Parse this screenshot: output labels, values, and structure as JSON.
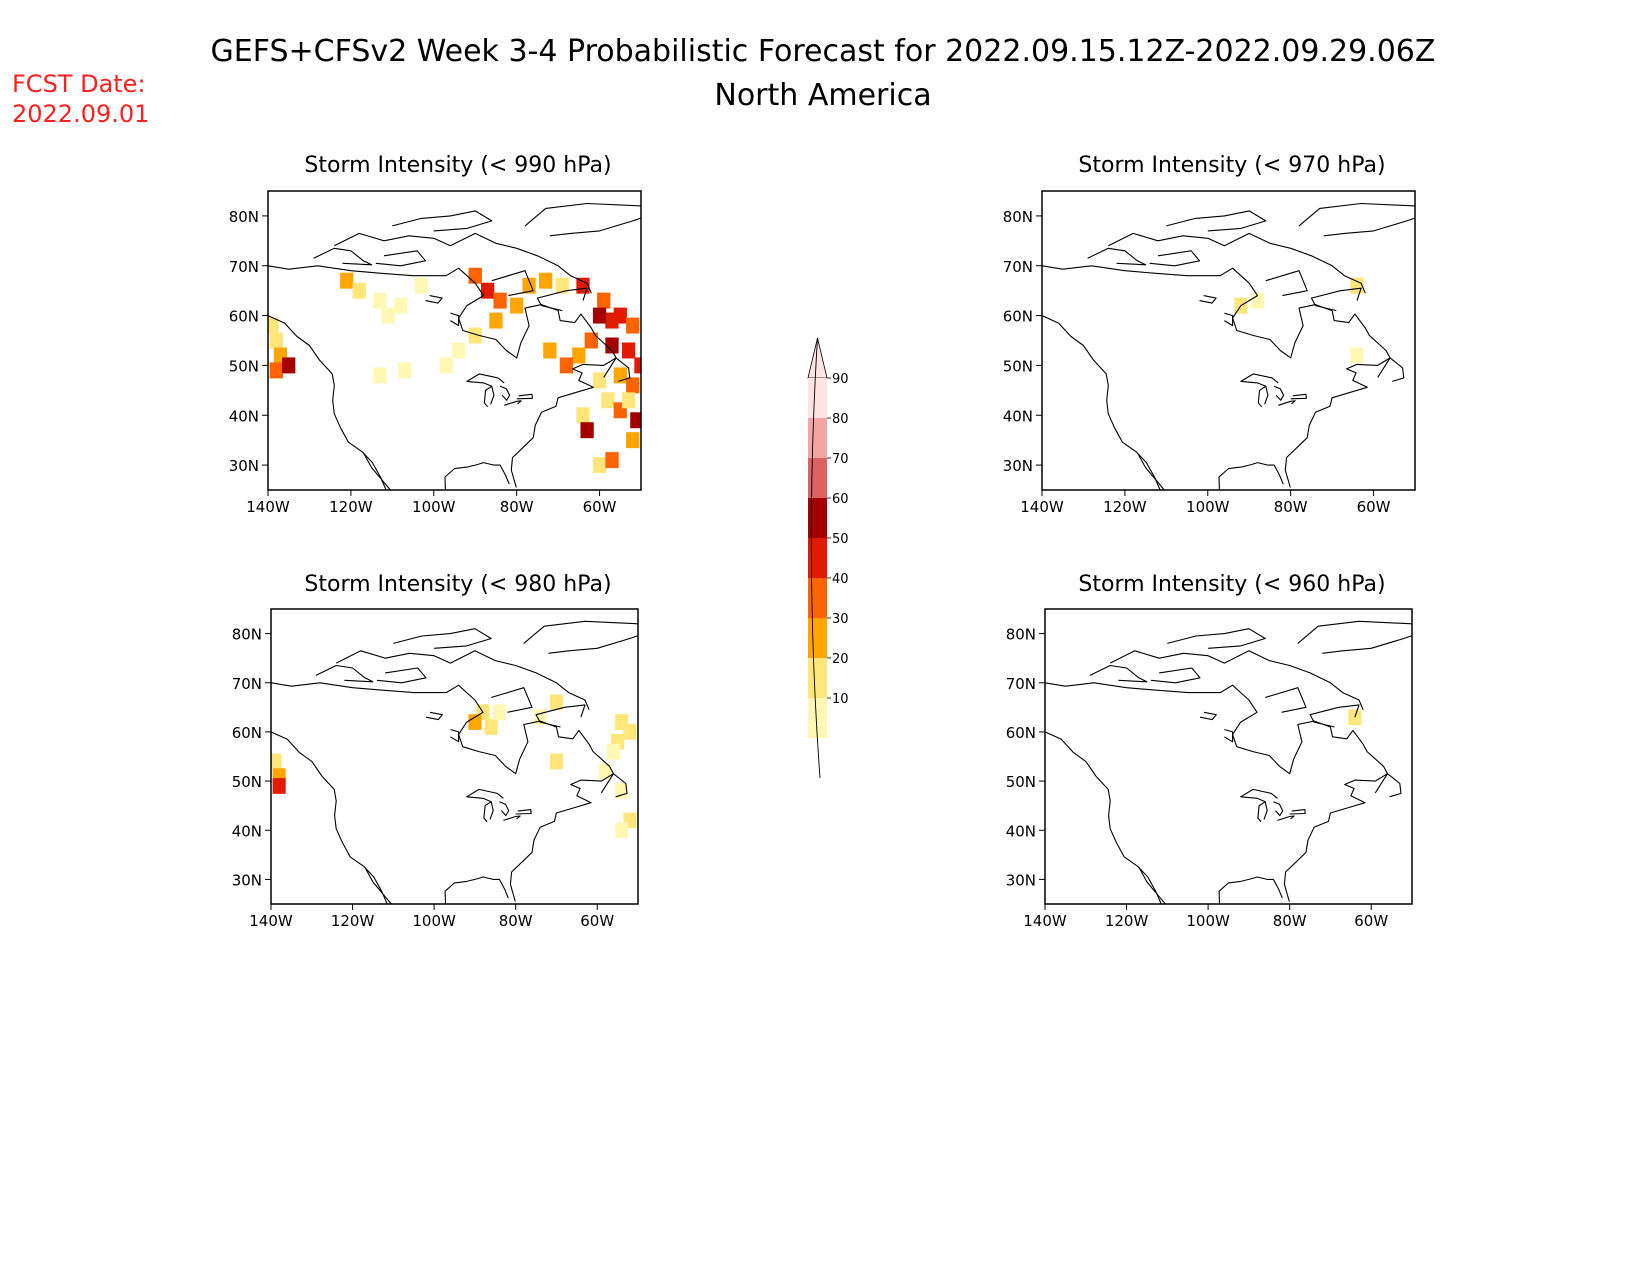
{
  "header": {
    "title": "GEFS+CFSv2 Week 3-4 Probabilistic Forecast for 2022.09.15.12Z-2022.09.29.06Z",
    "subtitle": "North America",
    "fcst_label": "FCST Date:",
    "fcst_date": "2022.09.01"
  },
  "axes": {
    "lat_labels": [
      "80N",
      "70N",
      "60N",
      "50N",
      "40N",
      "30N"
    ],
    "lat_values": [
      80,
      70,
      60,
      50,
      40,
      30
    ],
    "lon_labels": [
      "140W",
      "120W",
      "100W",
      "80W",
      "60W"
    ],
    "lon_values": [
      -140,
      -120,
      -100,
      -80,
      -60
    ],
    "lat_range": [
      25,
      85
    ],
    "lon_range": [
      -140,
      -50
    ]
  },
  "panels": [
    {
      "id": "p990",
      "title": "Storm Intensity (< 990 hPa)",
      "cells": [
        [
          -139,
          58,
          20
        ],
        [
          -138,
          55,
          20
        ],
        [
          -137,
          52,
          30
        ],
        [
          -138,
          49,
          40
        ],
        [
          -135,
          50,
          60
        ],
        [
          -121,
          67,
          30
        ],
        [
          -118,
          65,
          20
        ],
        [
          -113,
          63,
          10
        ],
        [
          -108,
          62,
          10
        ],
        [
          -103,
          66,
          10
        ],
        [
          -111,
          60,
          10
        ],
        [
          -113,
          48,
          10
        ],
        [
          -107,
          49,
          10
        ],
        [
          -90,
          68,
          40
        ],
        [
          -87,
          65,
          50
        ],
        [
          -84,
          63,
          40
        ],
        [
          -80,
          62,
          30
        ],
        [
          -77,
          66,
          30
        ],
        [
          -73,
          67,
          30
        ],
        [
          -69,
          66,
          20
        ],
        [
          -64,
          66,
          50
        ],
        [
          -59,
          63,
          40
        ],
        [
          -55,
          60,
          50
        ],
        [
          -52,
          58,
          40
        ],
        [
          -53,
          53,
          50
        ],
        [
          -57,
          54,
          60
        ],
        [
          -62,
          55,
          40
        ],
        [
          -65,
          52,
          30
        ],
        [
          -68,
          50,
          40
        ],
        [
          -72,
          53,
          30
        ],
        [
          -85,
          59,
          30
        ],
        [
          -90,
          56,
          20
        ],
        [
          -94,
          53,
          10
        ],
        [
          -97,
          50,
          10
        ],
        [
          -60,
          47,
          20
        ],
        [
          -55,
          48,
          30
        ],
        [
          -52,
          46,
          40
        ],
        [
          -58,
          43,
          20
        ],
        [
          -64,
          40,
          20
        ],
        [
          -55,
          41,
          40
        ],
        [
          -51,
          39,
          60
        ],
        [
          -52,
          35,
          30
        ],
        [
          -63,
          37,
          60
        ],
        [
          -60,
          30,
          20
        ],
        [
          -57,
          31,
          40
        ],
        [
          -53,
          43,
          20
        ],
        [
          -50,
          50,
          50
        ],
        [
          -57,
          59,
          50
        ],
        [
          -60,
          60,
          60
        ]
      ]
    },
    {
      "id": "p970",
      "title": "Storm Intensity (< 970 hPa)",
      "cells": [
        [
          -92,
          62,
          20
        ],
        [
          -88,
          63,
          10
        ],
        [
          -64,
          66,
          20
        ],
        [
          -64,
          52,
          10
        ]
      ]
    },
    {
      "id": "p980",
      "title": "Storm Intensity (< 980 hPa)",
      "cells": [
        [
          -139,
          54,
          20
        ],
        [
          -138,
          51,
          30
        ],
        [
          -138,
          49,
          50
        ],
        [
          -88,
          64,
          20
        ],
        [
          -90,
          62,
          30
        ],
        [
          -86,
          61,
          20
        ],
        [
          -84,
          64,
          10
        ],
        [
          -70,
          66,
          20
        ],
        [
          -74,
          63,
          10
        ],
        [
          -70,
          54,
          20
        ],
        [
          -54,
          62,
          20
        ],
        [
          -55,
          58,
          20
        ],
        [
          -52,
          60,
          20
        ],
        [
          -58,
          52,
          10
        ],
        [
          -54,
          48,
          10
        ],
        [
          -52,
          42,
          20
        ],
        [
          -54,
          40,
          10
        ],
        [
          -56,
          56,
          10
        ]
      ]
    },
    {
      "id": "p960",
      "title": "Storm Intensity (< 960 hPa)",
      "cells": [
        [
          -64,
          63,
          20
        ]
      ]
    }
  ],
  "colorbar": {
    "labels": [
      "90",
      "80",
      "70",
      "60",
      "50",
      "40",
      "30",
      "20",
      "10"
    ],
    "values": [
      10,
      20,
      30,
      40,
      50,
      60,
      70,
      80,
      90
    ],
    "colors": [
      "#fff8b5",
      "#ffe67a",
      "#ffa500",
      "#ff6300",
      "#e21a00",
      "#a50000",
      "#dc6363",
      "#f3a5a5",
      "#ffe4e4"
    ]
  }
}
